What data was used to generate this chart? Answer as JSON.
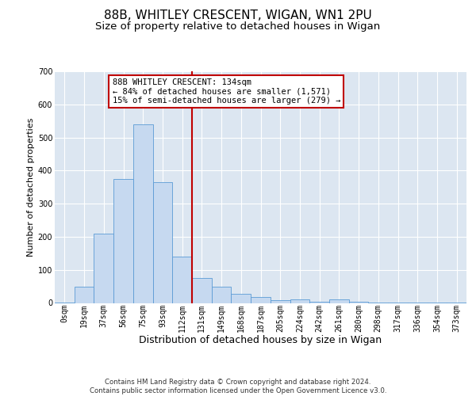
{
  "title_line1": "88B, WHITLEY CRESCENT, WIGAN, WN1 2PU",
  "title_line2": "Size of property relative to detached houses in Wigan",
  "xlabel": "Distribution of detached houses by size in Wigan",
  "ylabel": "Number of detached properties",
  "footer_line1": "Contains HM Land Registry data © Crown copyright and database right 2024.",
  "footer_line2": "Contains public sector information licensed under the Open Government Licence v3.0.",
  "categories": [
    "0sqm",
    "19sqm",
    "37sqm",
    "56sqm",
    "75sqm",
    "93sqm",
    "112sqm",
    "131sqm",
    "149sqm",
    "168sqm",
    "187sqm",
    "205sqm",
    "224sqm",
    "242sqm",
    "261sqm",
    "280sqm",
    "298sqm",
    "317sqm",
    "336sqm",
    "354sqm",
    "373sqm"
  ],
  "bar_heights": [
    2,
    48,
    210,
    375,
    540,
    365,
    140,
    75,
    50,
    28,
    18,
    8,
    10,
    4,
    10,
    4,
    2,
    1,
    1,
    1,
    2
  ],
  "bar_color": "#c6d9f0",
  "bar_edge_color": "#5b9bd5",
  "vline_position": 6.5,
  "vertical_line_color": "#c00000",
  "annotation_text": "88B WHITLEY CRESCENT: 134sqm\n← 84% of detached houses are smaller (1,571)\n15% of semi-detached houses are larger (279) →",
  "annotation_box_edgecolor": "#c00000",
  "annotation_bg_color": "#ffffff",
  "ylim_max": 700,
  "yticks": [
    0,
    100,
    200,
    300,
    400,
    500,
    600,
    700
  ],
  "plot_bg_color": "#dce6f1",
  "grid_color": "#ffffff",
  "title1_fontsize": 11,
  "title2_fontsize": 9.5,
  "xlabel_fontsize": 9,
  "ylabel_fontsize": 8,
  "tick_fontsize": 7,
  "annot_fontsize": 7.5,
  "footer_fontsize": 6.2
}
